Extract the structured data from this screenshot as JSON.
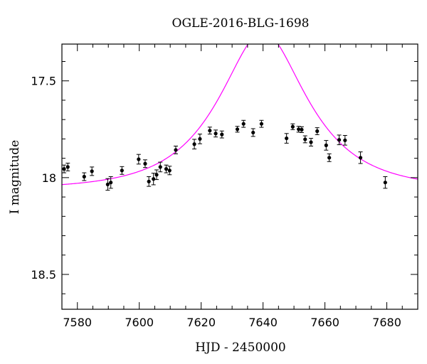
{
  "chart_data": {
    "type": "scatter",
    "title": "OGLE-2016-BLG-1698",
    "xlabel": "HJD - 2450000",
    "ylabel": "I magnitude",
    "xlim": [
      7575,
      7690
    ],
    "ylim": [
      18.68,
      17.31
    ],
    "y_inverted": true,
    "grid": false,
    "x_ticks": [
      7580,
      7600,
      7620,
      7640,
      7660,
      7680
    ],
    "x_tick_labels": [
      "7580",
      "7600",
      "7620",
      "7640",
      "7660",
      "7680"
    ],
    "y_ticks": [
      17.5,
      18,
      18.5
    ],
    "y_tick_labels": [
      "17.5",
      "18",
      "18.5"
    ],
    "x_minor_step": 5,
    "y_minor_step": 0.1,
    "colors": {
      "data": "#000000",
      "model": "#ff00ff"
    },
    "series": [
      {
        "style": "points-with-errorbars",
        "points": [
          {
            "x": 7575.7,
            "y": 17.955,
            "err": 0.02
          },
          {
            "x": 7576.9,
            "y": 17.945,
            "err": 0.02
          },
          {
            "x": 7582.2,
            "y": 17.995,
            "err": 0.02
          },
          {
            "x": 7584.7,
            "y": 17.967,
            "err": 0.022
          },
          {
            "x": 7589.8,
            "y": 18.035,
            "err": 0.03
          },
          {
            "x": 7590.8,
            "y": 18.025,
            "err": 0.03
          },
          {
            "x": 7594.4,
            "y": 17.963,
            "err": 0.02
          },
          {
            "x": 7599.8,
            "y": 17.905,
            "err": 0.025
          },
          {
            "x": 7601.9,
            "y": 17.928,
            "err": 0.02
          },
          {
            "x": 7603.1,
            "y": 18.02,
            "err": 0.025
          },
          {
            "x": 7604.6,
            "y": 18.007,
            "err": 0.03
          },
          {
            "x": 7605.6,
            "y": 17.985,
            "err": 0.025
          },
          {
            "x": 7606.8,
            "y": 17.945,
            "err": 0.025
          },
          {
            "x": 7608.7,
            "y": 17.955,
            "err": 0.02
          },
          {
            "x": 7609.8,
            "y": 17.963,
            "err": 0.022
          },
          {
            "x": 7611.8,
            "y": 17.857,
            "err": 0.02
          },
          {
            "x": 7617.8,
            "y": 17.827,
            "err": 0.025
          },
          {
            "x": 7619.6,
            "y": 17.8,
            "err": 0.025
          },
          {
            "x": 7622.8,
            "y": 17.757,
            "err": 0.018
          },
          {
            "x": 7624.7,
            "y": 17.772,
            "err": 0.018
          },
          {
            "x": 7626.7,
            "y": 17.777,
            "err": 0.018
          },
          {
            "x": 7631.7,
            "y": 17.75,
            "err": 0.015
          },
          {
            "x": 7633.7,
            "y": 17.722,
            "err": 0.018
          },
          {
            "x": 7636.8,
            "y": 17.767,
            "err": 0.02
          },
          {
            "x": 7639.5,
            "y": 17.722,
            "err": 0.018
          },
          {
            "x": 7647.6,
            "y": 17.797,
            "err": 0.025
          },
          {
            "x": 7649.6,
            "y": 17.737,
            "err": 0.015
          },
          {
            "x": 7651.5,
            "y": 17.75,
            "err": 0.015
          },
          {
            "x": 7652.5,
            "y": 17.752,
            "err": 0.015
          },
          {
            "x": 7653.6,
            "y": 17.802,
            "err": 0.018
          },
          {
            "x": 7655.5,
            "y": 17.817,
            "err": 0.02
          },
          {
            "x": 7657.5,
            "y": 17.76,
            "err": 0.018
          },
          {
            "x": 7660.4,
            "y": 17.833,
            "err": 0.025
          },
          {
            "x": 7661.4,
            "y": 17.897,
            "err": 0.02
          },
          {
            "x": 7664.6,
            "y": 17.805,
            "err": 0.025
          },
          {
            "x": 7666.5,
            "y": 17.807,
            "err": 0.025
          },
          {
            "x": 7671.5,
            "y": 17.897,
            "err": 0.03
          },
          {
            "x": 7679.5,
            "y": 18.025,
            "err": 0.03
          }
        ]
      },
      {
        "style": "model-curve",
        "model": {
          "kind": "pspl",
          "t0": 7640.0,
          "u0": 0.52,
          "tE": 24.0,
          "mag_base": 18.06
        }
      }
    ]
  }
}
